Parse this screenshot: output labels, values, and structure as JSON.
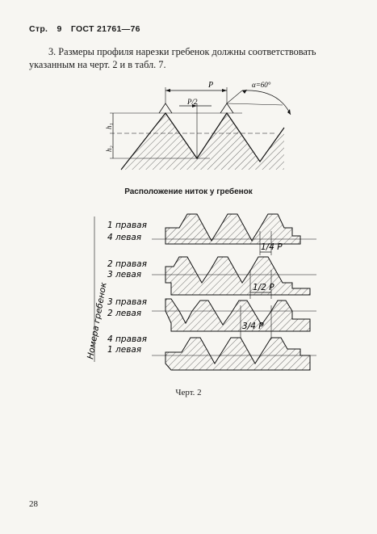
{
  "header": {
    "prefix": "Стр.",
    "page_no": "9",
    "standard": "ГОСТ 21761—76"
  },
  "paragraph": {
    "line1": "3. Размеры профиля нарезки гребенок должны соответствовать",
    "line2": "указанным на черт. 2 и в табл. 7."
  },
  "profile_figure": {
    "label_p": "P",
    "label_p2": "P/2",
    "label_alpha": "α=60°",
    "label_h1": "h₁",
    "label_h2": "h₂"
  },
  "subtitle": "Расположение ниток у гребенок",
  "arrangement_figure": {
    "side_label": "Номера гребенок",
    "rows": [
      {
        "a": "1 правая",
        "b": "4 левая",
        "offset": "1/4 P"
      },
      {
        "a": "2 правая",
        "b": "3 левая",
        "offset": "1/2 P"
      },
      {
        "a": "3 правая",
        "b": "2 левая",
        "offset": "3/4 P"
      },
      {
        "a": "4 правая",
        "b": "1 левая",
        "offset": ""
      }
    ]
  },
  "caption": "Черт. 2",
  "page_number": "28"
}
